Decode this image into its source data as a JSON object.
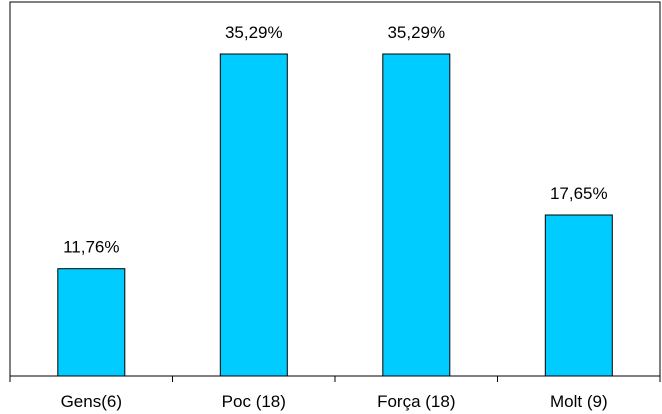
{
  "chart_data": {
    "type": "bar",
    "categories": [
      "Gens(6)",
      "Poc (18)",
      "Força (18)",
      "Molt (9)"
    ],
    "values": [
      11.76,
      35.29,
      35.29,
      17.65
    ],
    "data_labels": [
      "11,76%",
      "35,29%",
      "35,29%",
      "17,65%"
    ],
    "title": "",
    "xlabel": "",
    "ylabel": "",
    "ylim": [
      0,
      40
    ],
    "grid": false,
    "legend": "none",
    "colors": {
      "bar_fill": "#00CCFF",
      "bar_stroke": "#000000",
      "frame": "#000000",
      "background": "#FFFFFF"
    }
  }
}
